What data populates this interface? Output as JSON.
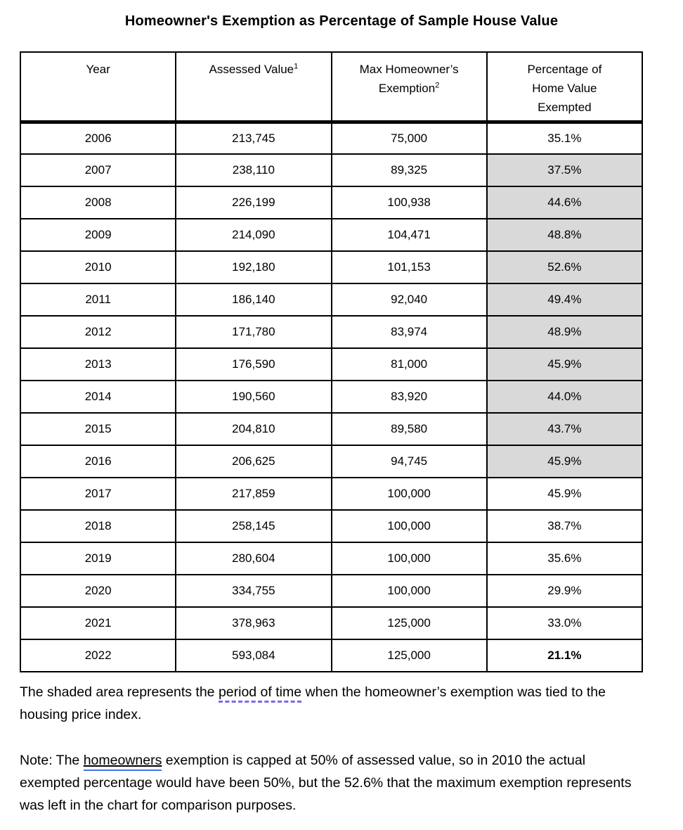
{
  "title": "Homeowner's Exemption as Percentage of Sample House Value",
  "colors": {
    "background": "#ffffff",
    "border": "#000000",
    "shaded_cell": "#d9d9d9",
    "dashed_underline": "#7b68ee",
    "double_underline": "#4271e8"
  },
  "table": {
    "columns": [
      {
        "lines": [
          "Year"
        ],
        "sup": ""
      },
      {
        "lines": [
          "Assessed Value"
        ],
        "sup": "1"
      },
      {
        "lines": [
          "Max Homeowner’s",
          "Exemption"
        ],
        "sup": "2"
      },
      {
        "lines": [
          "Percentage of",
          "Home Value",
          "Exempted"
        ],
        "sup": ""
      }
    ],
    "rows": [
      {
        "year": "2006",
        "assessed_value": "213,745",
        "max_exemption": "75,000",
        "percentage": "35.1%",
        "shaded": false,
        "bold": false
      },
      {
        "year": "2007",
        "assessed_value": "238,110",
        "max_exemption": "89,325",
        "percentage": "37.5%",
        "shaded": true,
        "bold": false
      },
      {
        "year": "2008",
        "assessed_value": "226,199",
        "max_exemption": "100,938",
        "percentage": "44.6%",
        "shaded": true,
        "bold": false
      },
      {
        "year": "2009",
        "assessed_value": "214,090",
        "max_exemption": "104,471",
        "percentage": "48.8%",
        "shaded": true,
        "bold": false
      },
      {
        "year": "2010",
        "assessed_value": "192,180",
        "max_exemption": "101,153",
        "percentage": "52.6%",
        "shaded": true,
        "bold": false
      },
      {
        "year": "2011",
        "assessed_value": "186,140",
        "max_exemption": "92,040",
        "percentage": "49.4%",
        "shaded": true,
        "bold": false
      },
      {
        "year": "2012",
        "assessed_value": "171,780",
        "max_exemption": "83,974",
        "percentage": "48.9%",
        "shaded": true,
        "bold": false
      },
      {
        "year": "2013",
        "assessed_value": "176,590",
        "max_exemption": "81,000",
        "percentage": "45.9%",
        "shaded": true,
        "bold": false
      },
      {
        "year": "2014",
        "assessed_value": "190,560",
        "max_exemption": "83,920",
        "percentage": "44.0%",
        "shaded": true,
        "bold": false
      },
      {
        "year": "2015",
        "assessed_value": "204,810",
        "max_exemption": "89,580",
        "percentage": "43.7%",
        "shaded": true,
        "bold": false
      },
      {
        "year": "2016",
        "assessed_value": "206,625",
        "max_exemption": "94,745",
        "percentage": "45.9%",
        "shaded": true,
        "bold": false
      },
      {
        "year": "2017",
        "assessed_value": "217,859",
        "max_exemption": "100,000",
        "percentage": "45.9%",
        "shaded": false,
        "bold": false
      },
      {
        "year": "2018",
        "assessed_value": "258,145",
        "max_exemption": "100,000",
        "percentage": "38.7%",
        "shaded": false,
        "bold": false
      },
      {
        "year": "2019",
        "assessed_value": "280,604",
        "max_exemption": "100,000",
        "percentage": "35.6%",
        "shaded": false,
        "bold": false
      },
      {
        "year": "2020",
        "assessed_value": "334,755",
        "max_exemption": "100,000",
        "percentage": "29.9%",
        "shaded": false,
        "bold": false
      },
      {
        "year": "2021",
        "assessed_value": "378,963",
        "max_exemption": "125,000",
        "percentage": "33.0%",
        "shaded": false,
        "bold": false
      },
      {
        "year": "2022",
        "assessed_value": "593,084",
        "max_exemption": "125,000",
        "percentage": "21.1%",
        "shaded": false,
        "bold": true
      }
    ]
  },
  "shaded_note": {
    "before": "The shaded area represents the ",
    "highlighted": "period of time",
    "after": " when the homeowner’s exemption was tied to the housing price index."
  },
  "cap_note": {
    "before": "Note: The ",
    "highlighted": "homeowners",
    "after": " exemption is capped at 50% of assessed value, so in 2010 the actual exempted percentage would have been 50%, but the 52.6% that the maximum exemption represents was left in the chart for comparison purposes."
  }
}
